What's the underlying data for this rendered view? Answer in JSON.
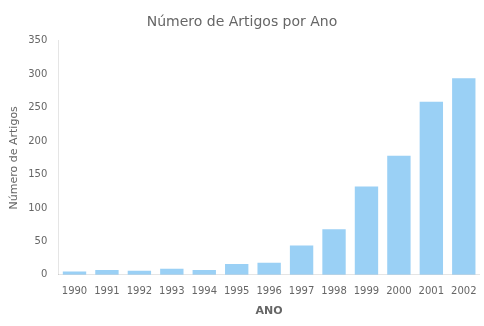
{
  "chart_data": {
    "type": "bar",
    "title": "Número de Artigos por Ano",
    "xlabel": "ANO",
    "ylabel": "Número de Artigos",
    "categories": [
      "1990",
      "1991",
      "1992",
      "1993",
      "1994",
      "1995",
      "1996",
      "1997",
      "1998",
      "1999",
      "2000",
      "2001",
      "2002"
    ],
    "values": [
      5,
      7,
      6,
      9,
      7,
      16,
      18,
      44,
      68,
      132,
      178,
      259,
      294
    ],
    "ylim": [
      0,
      350
    ],
    "yticks": [
      0,
      50,
      100,
      150,
      200,
      250,
      300,
      350
    ],
    "grid": false
  }
}
